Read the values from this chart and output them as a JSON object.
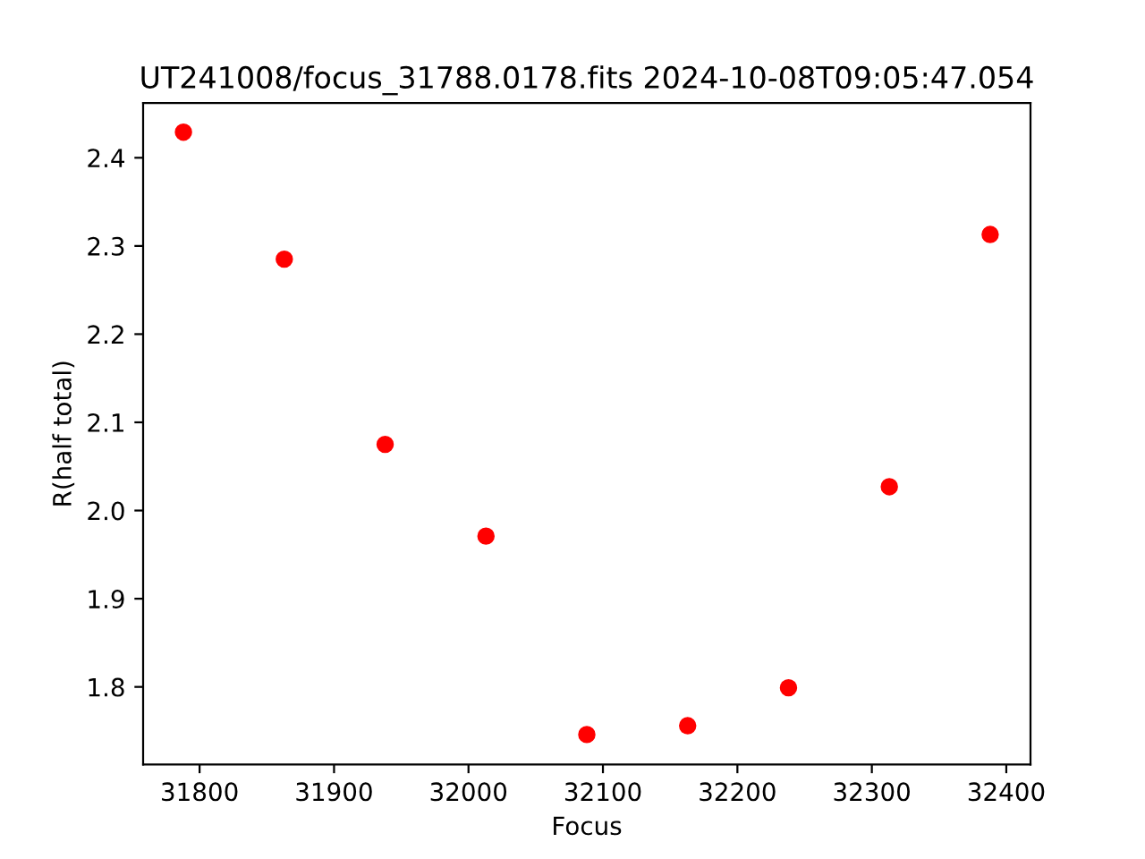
{
  "chart_data": {
    "type": "scatter",
    "title": "UT241008/focus_31788.0178.fits 2024-10-08T09:05:47.054",
    "xlabel": "Focus",
    "ylabel": "R(half total)",
    "x": [
      31788,
      31863,
      31938,
      32013,
      32088,
      32163,
      32238,
      32313,
      32388
    ],
    "series": [
      {
        "color": "#ff0000",
        "values": [
          2.429,
          2.285,
          2.075,
          1.971,
          1.746,
          1.756,
          1.799,
          2.027,
          2.313
        ]
      }
    ],
    "xlim": [
      31758,
      32418
    ],
    "xticks": [
      31800,
      31900,
      32000,
      32100,
      32200,
      32300,
      32400
    ],
    "ylim": [
      1.712,
      2.462
    ],
    "yticks": [
      1.8,
      1.9,
      {
        "value": 2.0,
        "label": "2.0"
      },
      2.1,
      2.2,
      2.3,
      2.4
    ],
    "marker": "circle",
    "grid": false,
    "legend": false
  }
}
